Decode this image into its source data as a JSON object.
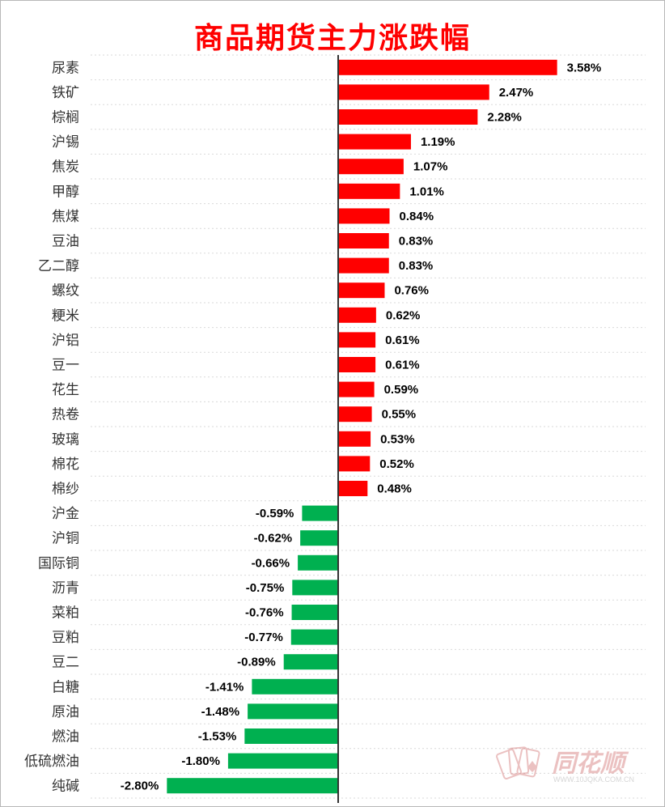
{
  "chart_data": {
    "type": "bar",
    "orientation": "horizontal",
    "title": "商品期货主力涨跌幅",
    "categories": [
      "尿素",
      "铁矿",
      "棕榈",
      "沪锡",
      "焦炭",
      "甲醇",
      "焦煤",
      "豆油",
      "乙二醇",
      "螺纹",
      "粳米",
      "沪铝",
      "豆一",
      "花生",
      "热卷",
      "玻璃",
      "棉花",
      "棉纱",
      "沪金",
      "沪铜",
      "国际铜",
      "沥青",
      "菜粕",
      "豆粕",
      "豆二",
      "白糖",
      "原油",
      "燃油",
      "低硫燃油",
      "纯碱"
    ],
    "values": [
      3.58,
      2.47,
      2.28,
      1.19,
      1.07,
      1.01,
      0.84,
      0.83,
      0.83,
      0.76,
      0.62,
      0.61,
      0.61,
      0.59,
      0.55,
      0.53,
      0.52,
      0.48,
      -0.59,
      -0.62,
      -0.66,
      -0.75,
      -0.76,
      -0.77,
      -0.89,
      -1.41,
      -1.48,
      -1.53,
      -1.8,
      -2.8
    ],
    "value_labels": [
      "3.58%",
      "2.47%",
      "2.28%",
      "1.19%",
      "1.07%",
      "1.01%",
      "0.84%",
      "0.83%",
      "0.83%",
      "0.76%",
      "0.62%",
      "0.61%",
      "0.61%",
      "0.59%",
      "0.55%",
      "0.53%",
      "0.52%",
      "0.48%",
      "-0.59%",
      "-0.62%",
      "-0.66%",
      "-0.75%",
      "-0.76%",
      "-0.77%",
      "-0.89%",
      "-1.41%",
      "-1.48%",
      "-1.53%",
      "-1.80%",
      "-2.80%"
    ],
    "unit": "%",
    "colors": {
      "positive": "#ff0000",
      "negative": "#00b050",
      "axis": "#333333",
      "gridline": "#d9d9d9"
    },
    "xlim": [
      -2.8,
      3.58
    ],
    "grid": true,
    "legend": "none"
  },
  "watermark": {
    "brand": "同花顺",
    "url": "WWW.10JQKA.COM.CN"
  }
}
